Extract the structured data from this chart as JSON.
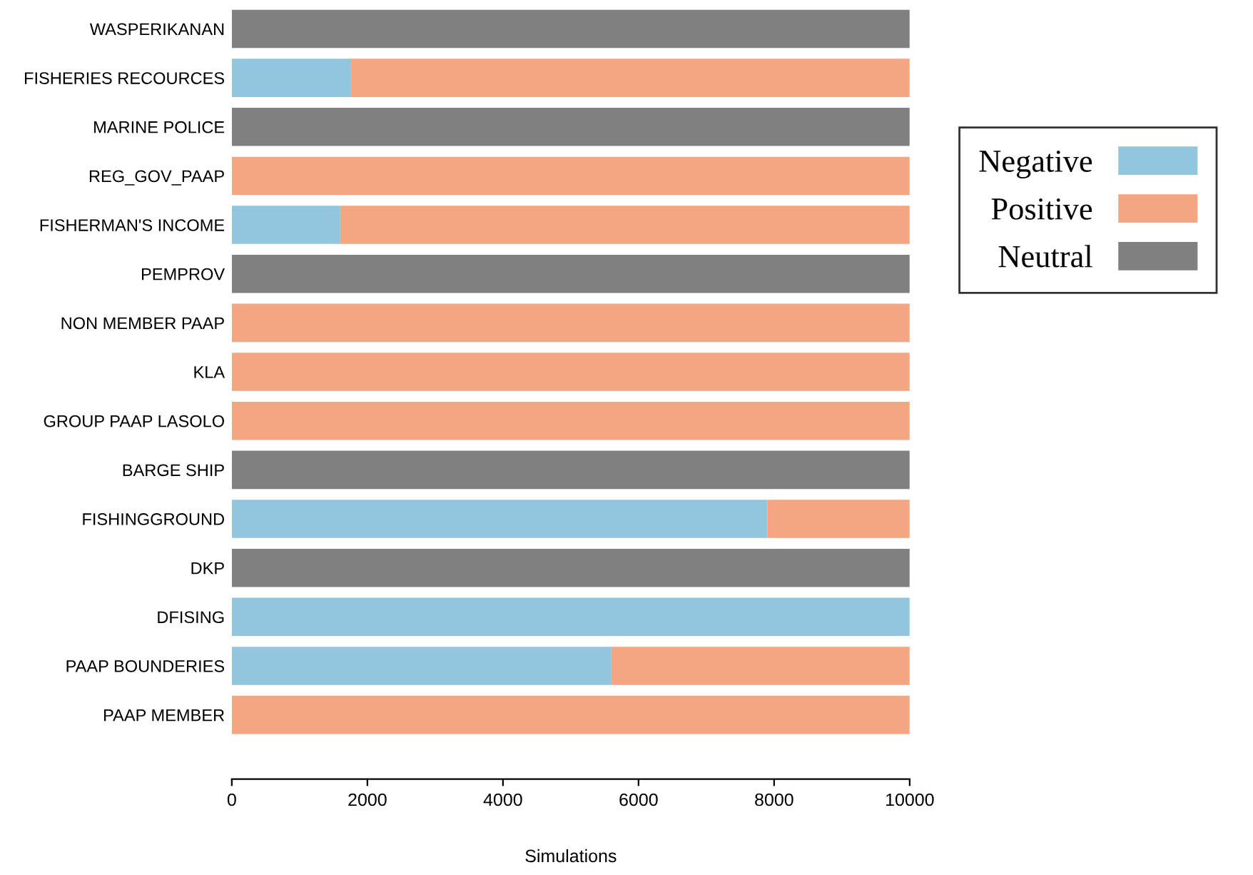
{
  "chart_data": {
    "type": "bar",
    "orientation": "horizontal",
    "stacked": true,
    "xlabel": "Simulations",
    "categories": [
      "WASPERIKANAN",
      "FISHERIES RECOURCES",
      "MARINE POLICE",
      "REG_GOV_PAAP",
      "FISHERMAN'S INCOME",
      "PEMPROV",
      "NON MEMBER PAAP",
      "KLA",
      "GROUP PAAP LASOLO",
      "BARGE SHIP",
      "FISHINGGROUND",
      "DKP",
      "DFISING",
      "PAAP BOUNDERIES",
      "PAAP MEMBER"
    ],
    "series": [
      {
        "name": "Negative",
        "color": "#92c5de",
        "values": [
          0,
          1750,
          0,
          0,
          1600,
          0,
          0,
          0,
          0,
          0,
          7900,
          0,
          10000,
          5600,
          0
        ]
      },
      {
        "name": "Positive",
        "color": "#f4a582",
        "values": [
          0,
          8250,
          0,
          10000,
          8400,
          0,
          10000,
          10000,
          10000,
          0,
          2100,
          0,
          0,
          4400,
          10000
        ]
      },
      {
        "name": "Neutral",
        "color": "#808080",
        "values": [
          10000,
          0,
          10000,
          0,
          0,
          10000,
          0,
          0,
          0,
          10000,
          0,
          10000,
          0,
          0,
          0
        ]
      }
    ],
    "xlim": [
      0,
      10000
    ],
    "xticks": [
      0,
      2000,
      4000,
      6000,
      8000,
      10000
    ],
    "grid": false,
    "legend": "right"
  }
}
